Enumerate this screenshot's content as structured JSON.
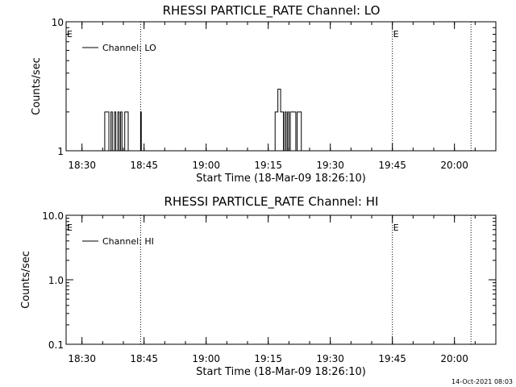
{
  "chart_data": [
    {
      "type": "line",
      "title": "RHESSI PARTICLE_RATE Channel: LO",
      "xlabel": "Start Time (18-Mar-09 18:26:10)",
      "ylabel": "Counts/sec",
      "yscale": "log",
      "ylim": [
        1,
        10
      ],
      "yticks": [
        1,
        10
      ],
      "ytick_labels": [
        "1",
        "10"
      ],
      "xlim": [
        "18:26:10",
        "20:10:00"
      ],
      "xticks": [
        "18:30",
        "18:45",
        "19:00",
        "19:15",
        "19:30",
        "19:45",
        "20:00"
      ],
      "grid": false,
      "legend": {
        "position": "top-left",
        "entries": [
          "Channel: LO"
        ]
      },
      "markers": [
        {
          "x": "18:26:10",
          "label": "E"
        },
        {
          "x": "19:45:00",
          "label": "E"
        }
      ],
      "vlines": [
        "18:44:10",
        "19:45:00",
        "20:04:00"
      ],
      "series": [
        {
          "name": "Channel: LO",
          "x": [
            "18:35:10",
            "18:35:30",
            "18:36:10",
            "18:36:30",
            "18:37:00",
            "18:37:20",
            "18:37:50",
            "18:38:10",
            "18:38:40",
            "18:39:00",
            "18:39:20",
            "18:39:40",
            "18:40:00",
            "18:40:20",
            "18:40:50",
            "18:41:10",
            "18:41:40",
            "18:42:00",
            "18:44:10",
            "18:44:20",
            "18:44:40",
            "18:45:00",
            "19:16:20",
            "19:16:40",
            "19:17:00",
            "19:17:20",
            "19:17:40",
            "19:18:00",
            "19:18:20",
            "19:18:40",
            "19:19:00",
            "19:19:20",
            "19:19:40",
            "19:20:00",
            "19:20:20",
            "19:20:40",
            "19:21:00",
            "19:21:20",
            "19:21:40",
            "19:22:00",
            "19:22:40",
            "19:23:00"
          ],
          "y": [
            1,
            2,
            2,
            1,
            2,
            1,
            2,
            1,
            2,
            1,
            2,
            1,
            1,
            2,
            2,
            1,
            1,
            1,
            2,
            1,
            1,
            1,
            1,
            2,
            2,
            3,
            3,
            2,
            2,
            1,
            2,
            1,
            2,
            1,
            2,
            2,
            2,
            2,
            1,
            2,
            2,
            1
          ]
        }
      ]
    },
    {
      "type": "line",
      "title": "RHESSI PARTICLE_RATE Channel: HI",
      "xlabel": "Start Time (18-Mar-09 18:26:10)",
      "ylabel": "Counts/sec",
      "yscale": "log",
      "ylim": [
        0.1,
        10
      ],
      "yticks": [
        0.1,
        1,
        10
      ],
      "ytick_labels": [
        "0.1",
        "1.0",
        "10.0"
      ],
      "xlim": [
        "18:26:10",
        "20:10:00"
      ],
      "xticks": [
        "18:30",
        "18:45",
        "19:00",
        "19:15",
        "19:30",
        "19:45",
        "20:00"
      ],
      "grid": false,
      "legend": {
        "position": "top-left",
        "entries": [
          "Channel: HI"
        ]
      },
      "markers": [
        {
          "x": "18:26:10",
          "label": "E"
        },
        {
          "x": "19:45:00",
          "label": "E"
        }
      ],
      "vlines": [
        "18:44:10",
        "19:45:00",
        "20:04:00"
      ],
      "series": [
        {
          "name": "Channel: HI",
          "x": [],
          "y": []
        }
      ]
    }
  ],
  "footer": {
    "timestamp": "14-Oct-2021 08:03"
  }
}
